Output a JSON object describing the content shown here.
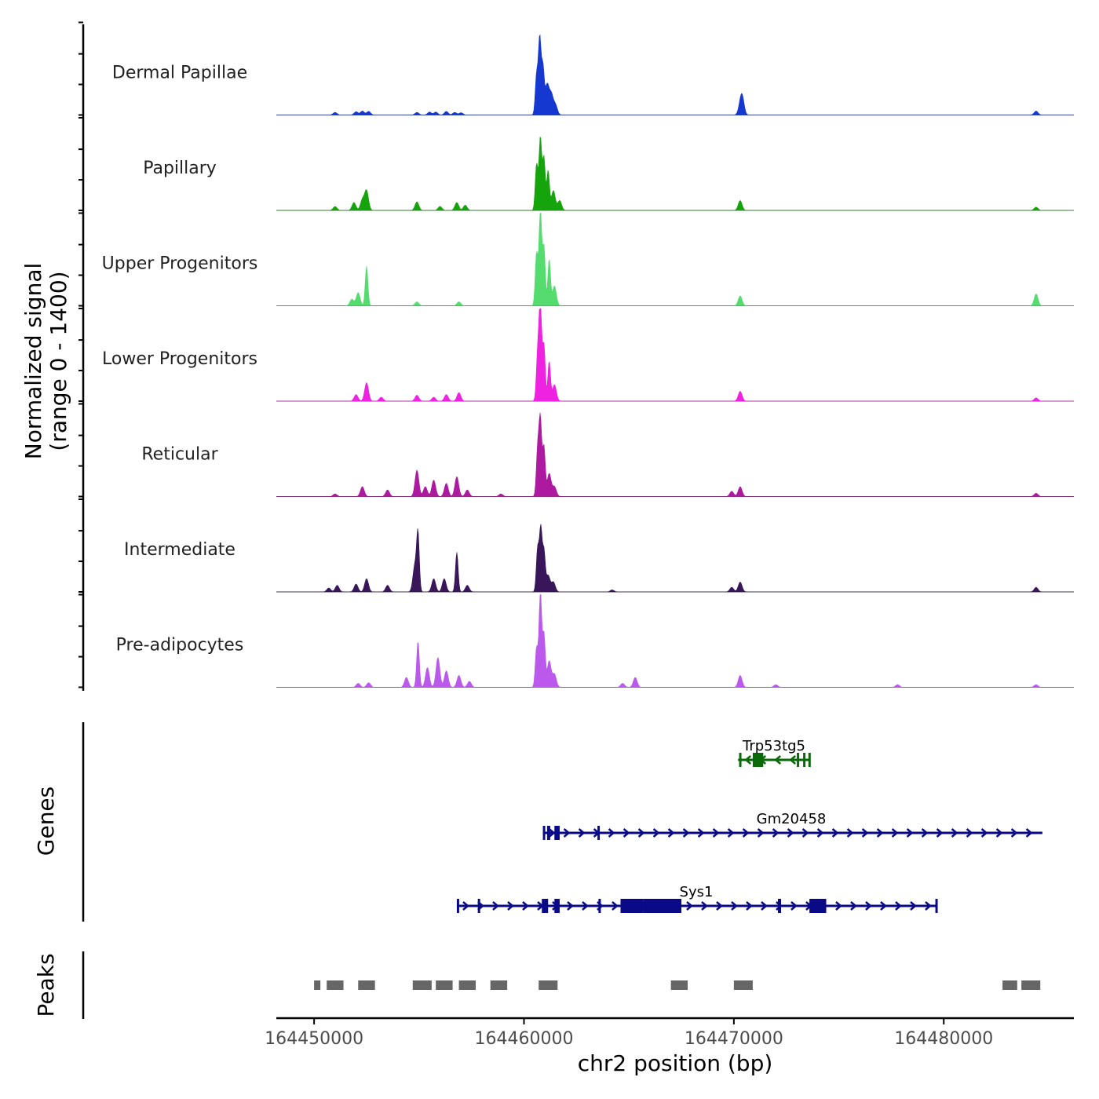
{
  "chart_data": {
    "type": "area",
    "ylabel": "Normalized signal\n(range 0 - 1400)",
    "y_range": [
      0,
      1400
    ],
    "xlabel": "chr2 position (bp)",
    "xlim": [
      164448200,
      164486200
    ],
    "x_ticks": [
      164450000,
      164460000,
      164470000,
      164480000
    ],
    "x_tick_labels": [
      "164450000",
      "164460000",
      "164470000",
      "164480000"
    ],
    "tracks": [
      {
        "name": "Dermal Papillae",
        "color": "#1538d0",
        "peaks": [
          [
            164451000,
            40
          ],
          [
            164452000,
            50
          ],
          [
            164452300,
            60
          ],
          [
            164452600,
            55
          ],
          [
            164454900,
            40
          ],
          [
            164455500,
            45
          ],
          [
            164455800,
            45
          ],
          [
            164456300,
            55
          ],
          [
            164456700,
            40
          ],
          [
            164457000,
            35
          ],
          [
            164460600,
            600
          ],
          [
            164460750,
            1150
          ],
          [
            164460900,
            700
          ],
          [
            164461100,
            450
          ],
          [
            164461300,
            300
          ],
          [
            164461500,
            150
          ],
          [
            164470300,
            120
          ],
          [
            164470400,
            250
          ],
          [
            164484400,
            60
          ]
        ],
        "peaks_widths": "default"
      },
      {
        "name": "Papillary",
        "color": "#16a40c",
        "peaks": [
          [
            164451000,
            60
          ],
          [
            164451900,
            120
          ],
          [
            164452300,
            160
          ],
          [
            164452500,
            300
          ],
          [
            164454900,
            130
          ],
          [
            164456000,
            60
          ],
          [
            164456800,
            120
          ],
          [
            164457200,
            80
          ],
          [
            164460600,
            700
          ],
          [
            164460780,
            1100
          ],
          [
            164460950,
            800
          ],
          [
            164461150,
            600
          ],
          [
            164461400,
            300
          ],
          [
            164461700,
            150
          ],
          [
            164470300,
            150
          ],
          [
            164484400,
            50
          ]
        ]
      },
      {
        "name": "Upper Progenitors",
        "color": "#55dc6f",
        "peaks": [
          [
            164451800,
            100
          ],
          [
            164452100,
            200
          ],
          [
            164452500,
            600
          ],
          [
            164454900,
            60
          ],
          [
            164456900,
            60
          ],
          [
            164460600,
            800
          ],
          [
            164460780,
            1450
          ],
          [
            164460950,
            900
          ],
          [
            164461200,
            700
          ],
          [
            164461450,
            300
          ],
          [
            164470300,
            150
          ],
          [
            164484400,
            180
          ]
        ]
      },
      {
        "name": "Lower Progenitors",
        "color": "#ee22e0",
        "peaks": [
          [
            164452000,
            100
          ],
          [
            164452500,
            280
          ],
          [
            164453200,
            60
          ],
          [
            164454900,
            90
          ],
          [
            164455700,
            60
          ],
          [
            164456300,
            100
          ],
          [
            164456900,
            130
          ],
          [
            164460650,
            700
          ],
          [
            164460780,
            1450
          ],
          [
            164460950,
            850
          ],
          [
            164461200,
            600
          ],
          [
            164461450,
            250
          ],
          [
            164470300,
            150
          ],
          [
            164484400,
            50
          ]
        ]
      },
      {
        "name": "Reticular",
        "color": "#ad1aa0",
        "peaks": [
          [
            164451000,
            40
          ],
          [
            164452300,
            150
          ],
          [
            164453500,
            100
          ],
          [
            164454900,
            400
          ],
          [
            164455300,
            150
          ],
          [
            164455700,
            250
          ],
          [
            164456300,
            200
          ],
          [
            164456800,
            300
          ],
          [
            164457300,
            100
          ],
          [
            164458900,
            40
          ],
          [
            164460650,
            700
          ],
          [
            164460780,
            1150
          ],
          [
            164460950,
            750
          ],
          [
            164461200,
            350
          ],
          [
            164461450,
            150
          ],
          [
            164469900,
            80
          ],
          [
            164470300,
            150
          ],
          [
            164484400,
            50
          ]
        ]
      },
      {
        "name": "Intermediate",
        "color": "#381659",
        "peaks": [
          [
            164450700,
            60
          ],
          [
            164451100,
            100
          ],
          [
            164452000,
            120
          ],
          [
            164452500,
            200
          ],
          [
            164453500,
            100
          ],
          [
            164454800,
            400
          ],
          [
            164454950,
            850
          ],
          [
            164455700,
            200
          ],
          [
            164456200,
            200
          ],
          [
            164456800,
            600
          ],
          [
            164457300,
            100
          ],
          [
            164460650,
            650
          ],
          [
            164460800,
            950
          ],
          [
            164460950,
            600
          ],
          [
            164461150,
            250
          ],
          [
            164461400,
            150
          ],
          [
            164464200,
            30
          ],
          [
            164469900,
            70
          ],
          [
            164470300,
            150
          ],
          [
            164484400,
            70
          ]
        ]
      },
      {
        "name": "Pre-adipocytes",
        "color": "#bb59ec",
        "peaks": [
          [
            164452100,
            60
          ],
          [
            164452600,
            70
          ],
          [
            164454400,
            150
          ],
          [
            164454950,
            700
          ],
          [
            164455400,
            300
          ],
          [
            164455900,
            450
          ],
          [
            164456300,
            250
          ],
          [
            164456900,
            180
          ],
          [
            164457400,
            90
          ],
          [
            164460600,
            600
          ],
          [
            164460780,
            1450
          ],
          [
            164460950,
            800
          ],
          [
            164461200,
            400
          ],
          [
            164461450,
            200
          ],
          [
            164464700,
            60
          ],
          [
            164465300,
            150
          ],
          [
            164470300,
            180
          ],
          [
            164472000,
            40
          ],
          [
            164477800,
            40
          ],
          [
            164484400,
            40
          ]
        ]
      }
    ],
    "genes_label": "Genes",
    "genes": [
      {
        "name": "Trp53tg5",
        "strand": "-",
        "color": "#0a6a0a",
        "start": 164470200,
        "end": 164473600,
        "exons": [
          [
            164470250,
            164470350
          ],
          [
            164470900,
            164471400
          ],
          [
            164473000,
            164473100
          ],
          [
            164473300,
            164473350
          ],
          [
            164473550,
            164473600
          ]
        ]
      },
      {
        "name": "Gm20458",
        "strand": "+",
        "color": "#0a0a88",
        "start": 164460900,
        "end": 164484700,
        "exons": [
          [
            164460900,
            164460950
          ],
          [
            164461100,
            164461250
          ],
          [
            164461450,
            164461700
          ],
          [
            164463500,
            164463550
          ]
        ]
      },
      {
        "name": "Sys1",
        "strand": "+",
        "color": "#0a0a88",
        "start": 164456800,
        "end": 164479700,
        "exons": [
          [
            164456800,
            164456900
          ],
          [
            164457800,
            164457900
          ],
          [
            164460850,
            164461150
          ],
          [
            164461450,
            164461700
          ],
          [
            164463550,
            164463600
          ],
          [
            164464600,
            164465700
          ],
          [
            164465700,
            164467500
          ],
          [
            164472100,
            164472250
          ],
          [
            164473600,
            164474400
          ],
          [
            164479600,
            164479700
          ]
        ]
      }
    ],
    "peaks_label": "Peaks",
    "peak_regions": [
      [
        164450000,
        164450300
      ],
      [
        164450600,
        164451400
      ],
      [
        164452100,
        164452900
      ],
      [
        164454700,
        164455600
      ],
      [
        164455800,
        164456600
      ],
      [
        164456900,
        164457700
      ],
      [
        164458400,
        164459200
      ],
      [
        164460700,
        164461600
      ],
      [
        164467000,
        164467800
      ],
      [
        164470000,
        164470900
      ],
      [
        164482800,
        164483500
      ],
      [
        164483700,
        164484600
      ]
    ]
  }
}
